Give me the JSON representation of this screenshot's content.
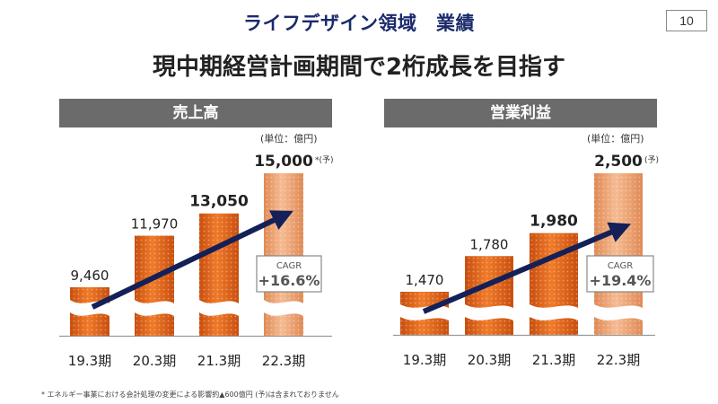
{
  "header": {
    "title": "ライフデザイン領域　業績",
    "page_number": "10",
    "subtitle": "現中期経営計画期間で2桁成長を目指す"
  },
  "colors": {
    "title_blue": "#1a2a6c",
    "bar_orange": "#e8691c",
    "bar_forecast": "#eea878",
    "arrow_navy": "#142058",
    "panel_gray": "#6b6b6b"
  },
  "chart_data": [
    {
      "type": "bar",
      "title": "売上高",
      "unit_label": "(単位：億円)",
      "categories": [
        "19.3期",
        "20.3期",
        "21.3期",
        "22.3期"
      ],
      "values": [
        9460,
        11970,
        13050,
        15000
      ],
      "value_labels": [
        "9,460",
        "11,970",
        "13,050",
        "15,000"
      ],
      "forecast_note": "*(予)",
      "axis_break": true,
      "cagr_label": "CAGR",
      "cagr_value": "+16.6%"
    },
    {
      "type": "bar",
      "title": "営業利益",
      "unit_label": "(単位：億円)",
      "categories": [
        "19.3期",
        "20.3期",
        "21.3期",
        "22.3期"
      ],
      "values": [
        1470,
        1780,
        1980,
        2500
      ],
      "value_labels": [
        "1,470",
        "1,780",
        "1,980",
        "2,500"
      ],
      "forecast_note": "(予)",
      "axis_break": true,
      "cagr_label": "CAGR",
      "cagr_value": "+19.4%"
    }
  ],
  "footnote": "* エネルギー事業における会計処理の変更による影響約▲600億円 (予)は含まれておりません"
}
